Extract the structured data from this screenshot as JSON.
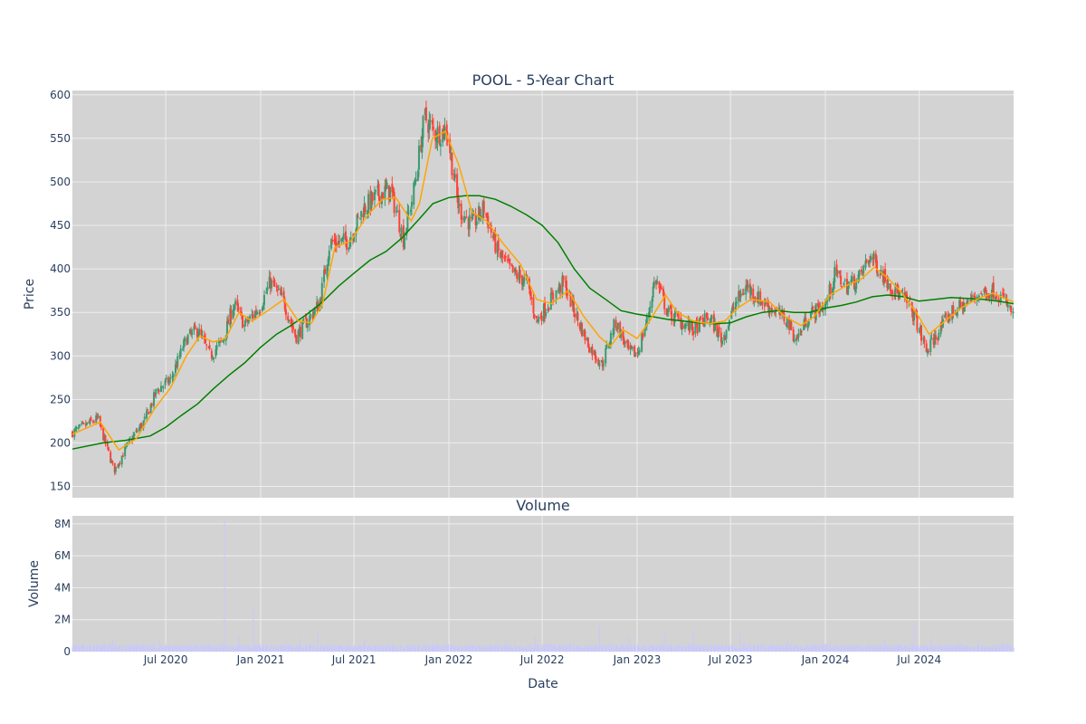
{
  "chart_title": "POOL - 5-Year Chart",
  "volume_title": "Volume",
  "colors": {
    "plot_bg": "#d3d3d3",
    "grid": "#eeeeee",
    "up": "#3d9970",
    "down": "#ff4136",
    "ma_short": "#ffa500",
    "ma_long": "#008000",
    "volume": "#c8c8ff"
  },
  "chart_data": [
    {
      "type": "candlestick",
      "title": "POOL - 5-Year Chart",
      "ylabel": "Price",
      "ylim": [
        137,
        605
      ],
      "xlim": [
        "2020-01-02",
        "2024-12-31"
      ],
      "yticks": [
        150,
        200,
        250,
        300,
        350,
        400,
        450,
        500,
        550,
        600
      ],
      "x_grid_dates": [
        "2020-07-01",
        "2021-01-01",
        "2021-07-01",
        "2022-01-01",
        "2022-07-01",
        "2023-01-01",
        "2023-07-01",
        "2024-01-01",
        "2024-07-01"
      ],
      "price_trend": [
        [
          "2020-01-02",
          212
        ],
        [
          "2020-02-20",
          228
        ],
        [
          "2020-03-23",
          168
        ],
        [
          "2020-04-20",
          200
        ],
        [
          "2020-05-20",
          225
        ],
        [
          "2020-06-15",
          262
        ],
        [
          "2020-07-10",
          272
        ],
        [
          "2020-08-10",
          320
        ],
        [
          "2020-09-01",
          330
        ],
        [
          "2020-09-25",
          300
        ],
        [
          "2020-10-20",
          318
        ],
        [
          "2020-11-10",
          360
        ],
        [
          "2020-12-01",
          335
        ],
        [
          "2021-01-01",
          358
        ],
        [
          "2021-01-20",
          385
        ],
        [
          "2021-02-15",
          362
        ],
        [
          "2021-03-10",
          322
        ],
        [
          "2021-04-01",
          340
        ],
        [
          "2021-04-25",
          360
        ],
        [
          "2021-05-15",
          430
        ],
        [
          "2021-06-20",
          432
        ],
        [
          "2021-07-20",
          470
        ],
        [
          "2021-08-20",
          487
        ],
        [
          "2021-09-10",
          490
        ],
        [
          "2021-10-05",
          435
        ],
        [
          "2021-10-25",
          490
        ],
        [
          "2021-11-15",
          575
        ],
        [
          "2021-12-05",
          555
        ],
        [
          "2021-12-28",
          560
        ],
        [
          "2022-01-20",
          470
        ],
        [
          "2022-02-15",
          450
        ],
        [
          "2022-03-10",
          470
        ],
        [
          "2022-04-05",
          420
        ],
        [
          "2022-05-05",
          395
        ],
        [
          "2022-06-01",
          385
        ],
        [
          "2022-06-20",
          340
        ],
        [
          "2022-07-15",
          362
        ],
        [
          "2022-08-12",
          385
        ],
        [
          "2022-09-05",
          345
        ],
        [
          "2022-10-01",
          310
        ],
        [
          "2022-10-25",
          290
        ],
        [
          "2022-11-20",
          340
        ],
        [
          "2022-12-15",
          305
        ],
        [
          "2023-01-01",
          302
        ],
        [
          "2023-01-20",
          340
        ],
        [
          "2023-02-05",
          390
        ],
        [
          "2023-03-01",
          350
        ],
        [
          "2023-03-20",
          342
        ],
        [
          "2023-04-20",
          330
        ],
        [
          "2023-05-20",
          345
        ],
        [
          "2023-06-15",
          318
        ],
        [
          "2023-07-10",
          360
        ],
        [
          "2023-08-01",
          380
        ],
        [
          "2023-09-01",
          362
        ],
        [
          "2023-09-25",
          352
        ],
        [
          "2023-10-20",
          340
        ],
        [
          "2023-11-05",
          318
        ],
        [
          "2023-12-01",
          348
        ],
        [
          "2024-01-01",
          358
        ],
        [
          "2024-01-20",
          395
        ],
        [
          "2024-02-10",
          380
        ],
        [
          "2024-03-05",
          388
        ],
        [
          "2024-03-28",
          415
        ],
        [
          "2024-04-20",
          395
        ],
        [
          "2024-05-15",
          375
        ],
        [
          "2024-06-10",
          360
        ],
        [
          "2024-06-25",
          340
        ],
        [
          "2024-07-15",
          305
        ],
        [
          "2024-08-10",
          330
        ],
        [
          "2024-09-01",
          350
        ],
        [
          "2024-10-01",
          360
        ],
        [
          "2024-10-25",
          372
        ],
        [
          "2024-11-25",
          375
        ],
        [
          "2024-12-15",
          362
        ],
        [
          "2024-12-31",
          345
        ]
      ],
      "ma_short": [
        [
          "2020-01-02",
          210
        ],
        [
          "2020-02-25",
          224
        ],
        [
          "2020-04-01",
          192
        ],
        [
          "2020-05-05",
          205
        ],
        [
          "2020-06-10",
          240
        ],
        [
          "2020-07-10",
          263
        ],
        [
          "2020-08-10",
          300
        ],
        [
          "2020-09-05",
          323
        ],
        [
          "2020-10-01",
          316
        ],
        [
          "2020-10-25",
          320
        ],
        [
          "2020-11-20",
          350
        ],
        [
          "2020-12-15",
          340
        ],
        [
          "2021-01-15",
          352
        ],
        [
          "2021-02-15",
          365
        ],
        [
          "2021-03-15",
          340
        ],
        [
          "2021-04-10",
          338
        ],
        [
          "2021-05-01",
          360
        ],
        [
          "2021-05-25",
          425
        ],
        [
          "2021-06-25",
          432
        ],
        [
          "2021-07-25",
          460
        ],
        [
          "2021-08-25",
          480
        ],
        [
          "2021-09-20",
          482
        ],
        [
          "2021-10-20",
          455
        ],
        [
          "2021-11-05",
          475
        ],
        [
          "2021-11-30",
          550
        ],
        [
          "2021-12-25",
          558
        ],
        [
          "2022-01-20",
          520
        ],
        [
          "2022-02-15",
          465
        ],
        [
          "2022-03-15",
          455
        ],
        [
          "2022-04-15",
          430
        ],
        [
          "2022-05-20",
          405
        ],
        [
          "2022-06-20",
          365
        ],
        [
          "2022-07-20",
          360
        ],
        [
          "2022-08-20",
          375
        ],
        [
          "2022-09-20",
          345
        ],
        [
          "2022-10-20",
          322
        ],
        [
          "2022-11-10",
          311
        ],
        [
          "2022-12-05",
          330
        ],
        [
          "2023-01-01",
          320
        ],
        [
          "2023-01-25",
          340
        ],
        [
          "2023-02-25",
          370
        ],
        [
          "2023-03-20",
          350
        ],
        [
          "2023-04-20",
          340
        ],
        [
          "2023-05-20",
          337
        ],
        [
          "2023-06-20",
          340
        ],
        [
          "2023-07-15",
          355
        ],
        [
          "2023-08-10",
          365
        ],
        [
          "2023-09-15",
          362
        ],
        [
          "2023-10-15",
          345
        ],
        [
          "2023-11-15",
          335
        ],
        [
          "2023-12-10",
          345
        ],
        [
          "2024-01-10",
          370
        ],
        [
          "2024-02-15",
          382
        ],
        [
          "2024-03-10",
          388
        ],
        [
          "2024-04-05",
          402
        ],
        [
          "2024-04-30",
          390
        ],
        [
          "2024-05-25",
          375
        ],
        [
          "2024-06-25",
          350
        ],
        [
          "2024-07-20",
          325
        ],
        [
          "2024-08-20",
          340
        ],
        [
          "2024-09-20",
          355
        ],
        [
          "2024-10-20",
          365
        ],
        [
          "2024-11-20",
          372
        ],
        [
          "2024-12-31",
          362
        ]
      ],
      "ma_long": [
        [
          "2020-01-02",
          193
        ],
        [
          "2020-03-01",
          200
        ],
        [
          "2020-04-15",
          203
        ],
        [
          "2020-06-01",
          208
        ],
        [
          "2020-07-01",
          218
        ],
        [
          "2020-08-01",
          232
        ],
        [
          "2020-09-01",
          245
        ],
        [
          "2020-10-01",
          262
        ],
        [
          "2020-11-01",
          278
        ],
        [
          "2020-12-01",
          292
        ],
        [
          "2021-01-01",
          310
        ],
        [
          "2021-02-01",
          325
        ],
        [
          "2021-03-01",
          335
        ],
        [
          "2021-04-01",
          348
        ],
        [
          "2021-05-01",
          362
        ],
        [
          "2021-06-01",
          380
        ],
        [
          "2021-07-01",
          395
        ],
        [
          "2021-08-01",
          410
        ],
        [
          "2021-09-01",
          420
        ],
        [
          "2021-10-01",
          435
        ],
        [
          "2021-11-01",
          455
        ],
        [
          "2021-12-01",
          475
        ],
        [
          "2022-01-01",
          482
        ],
        [
          "2022-02-01",
          484
        ],
        [
          "2022-03-01",
          484
        ],
        [
          "2022-04-01",
          480
        ],
        [
          "2022-05-01",
          472
        ],
        [
          "2022-06-01",
          462
        ],
        [
          "2022-07-01",
          450
        ],
        [
          "2022-08-01",
          430
        ],
        [
          "2022-09-01",
          400
        ],
        [
          "2022-10-01",
          378
        ],
        [
          "2022-11-01",
          365
        ],
        [
          "2022-12-01",
          352
        ],
        [
          "2023-01-01",
          348
        ],
        [
          "2023-02-01",
          345
        ],
        [
          "2023-03-01",
          342
        ],
        [
          "2023-04-01",
          340
        ],
        [
          "2023-05-01",
          338
        ],
        [
          "2023-06-01",
          337
        ],
        [
          "2023-07-01",
          338
        ],
        [
          "2023-08-01",
          345
        ],
        [
          "2023-09-01",
          350
        ],
        [
          "2023-10-01",
          352
        ],
        [
          "2023-11-01",
          350
        ],
        [
          "2023-12-01",
          350
        ],
        [
          "2024-01-01",
          355
        ],
        [
          "2024-02-01",
          358
        ],
        [
          "2024-03-01",
          362
        ],
        [
          "2024-04-01",
          368
        ],
        [
          "2024-05-01",
          370
        ],
        [
          "2024-06-01",
          368
        ],
        [
          "2024-07-01",
          363
        ],
        [
          "2024-08-01",
          365
        ],
        [
          "2024-09-01",
          367
        ],
        [
          "2024-10-01",
          366
        ],
        [
          "2024-11-01",
          365
        ],
        [
          "2024-12-01",
          363
        ],
        [
          "2024-12-31",
          360
        ]
      ]
    },
    {
      "type": "bar",
      "title": "Volume",
      "xlabel": "Date",
      "ylabel": "Volume",
      "ylim": [
        0,
        8500000
      ],
      "yticks": [
        0,
        2000000,
        4000000,
        6000000,
        8000000
      ],
      "ytick_labels": [
        "0",
        "2M",
        "4M",
        "6M",
        "8M"
      ],
      "xtick_dates": [
        "2020-07-01",
        "2021-01-01",
        "2021-07-01",
        "2022-01-01",
        "2022-07-01",
        "2023-01-01",
        "2023-07-01",
        "2024-01-01",
        "2024-07-01"
      ],
      "xtick_labels": [
        "Jul 2020",
        "Jan 2021",
        "Jul 2021",
        "Jan 2022",
        "Jul 2022",
        "Jan 2023",
        "Jul 2023",
        "Jan 2024",
        "Jul 2024"
      ],
      "baseline_volume": 350000,
      "spikes": [
        [
          "2020-03-20",
          700000
        ],
        [
          "2020-06-19",
          800000
        ],
        [
          "2020-10-23",
          8100000
        ],
        [
          "2020-11-20",
          900000
        ],
        [
          "2020-12-18",
          2900000
        ],
        [
          "2021-03-19",
          900000
        ],
        [
          "2021-04-22",
          1200000
        ],
        [
          "2021-07-22",
          700000
        ],
        [
          "2022-04-21",
          800000
        ],
        [
          "2022-06-17",
          900000
        ],
        [
          "2022-10-20",
          1600000
        ],
        [
          "2022-12-16",
          900000
        ],
        [
          "2023-02-23",
          1100000
        ],
        [
          "2023-04-20",
          1300000
        ],
        [
          "2023-07-20",
          1300000
        ],
        [
          "2023-10-19",
          700000
        ],
        [
          "2024-04-25",
          800000
        ],
        [
          "2024-06-21",
          1900000
        ],
        [
          "2024-07-25",
          900000
        ],
        [
          "2024-10-24",
          600000
        ]
      ]
    }
  ]
}
